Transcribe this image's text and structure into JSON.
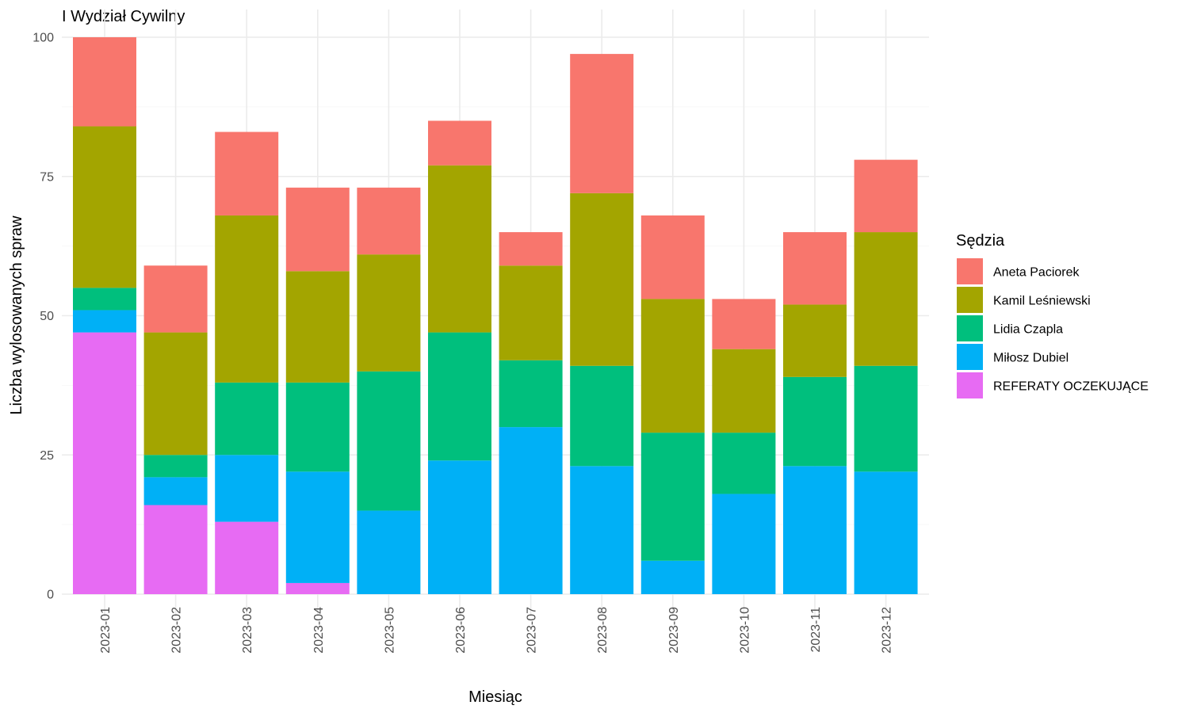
{
  "chart_data": {
    "type": "bar",
    "stacked": true,
    "title": "I Wydział Cywilny",
    "xlabel": "Miesiąc",
    "ylabel": "Liczba wylosowanych spraw",
    "ylim": [
      0,
      100
    ],
    "yticks": [
      "0",
      "25",
      "50",
      "75",
      "100"
    ],
    "grid": true,
    "legend_title": "Sędzia",
    "legend_position": "right",
    "categories": [
      "2023-01",
      "2023-02",
      "2023-03",
      "2023-04",
      "2023-05",
      "2023-06",
      "2023-07",
      "2023-08",
      "2023-09",
      "2023-10",
      "2023-11",
      "2023-12"
    ],
    "series": [
      {
        "name": "Aneta Paciorek",
        "color": "#F8766D",
        "values": [
          16,
          12,
          15,
          15,
          12,
          8,
          6,
          25,
          15,
          9,
          13,
          13
        ]
      },
      {
        "name": "Kamil Leśniewski",
        "color": "#A3A500",
        "values": [
          29,
          22,
          30,
          20,
          21,
          30,
          17,
          31,
          24,
          15,
          13,
          24
        ]
      },
      {
        "name": "Lidia Czapla",
        "color": "#00BF7D",
        "values": [
          4,
          4,
          13,
          16,
          25,
          23,
          12,
          18,
          23,
          11,
          16,
          19
        ]
      },
      {
        "name": "Miłosz Dubiel",
        "color": "#00B0F6",
        "values": [
          4,
          5,
          12,
          20,
          15,
          24,
          30,
          23,
          6,
          18,
          23,
          22
        ]
      },
      {
        "name": "REFERATY OCZEKUJĄCE",
        "color": "#E76BF3",
        "values": [
          47,
          16,
          13,
          2,
          0,
          0,
          0,
          0,
          0,
          0,
          0,
          0
        ]
      }
    ]
  }
}
